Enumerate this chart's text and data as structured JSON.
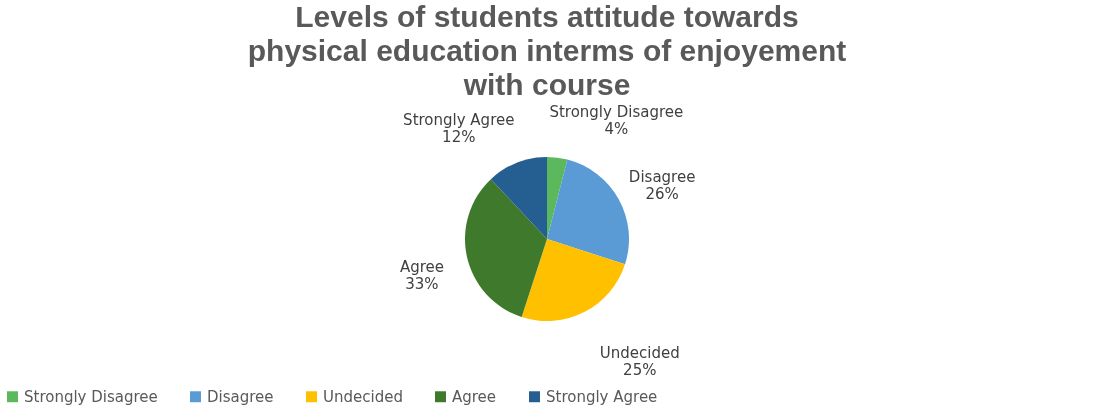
{
  "chart_data": {
    "type": "pie",
    "title": "Levels of students attitude towards physical education interms of enjoyement with course",
    "categories": [
      "Strongly Disagree",
      "Disagree",
      "Undecided",
      "Agree",
      "Strongly Agree"
    ],
    "values": [
      4,
      26,
      25,
      33,
      12
    ],
    "value_labels": [
      "4%",
      "26%",
      "25%",
      "33%",
      "12%"
    ],
    "colors": [
      "#5cb85c",
      "#5b9bd5",
      "#ffc000",
      "#3f7a2c",
      "#255e91"
    ],
    "legend": "bottom"
  }
}
